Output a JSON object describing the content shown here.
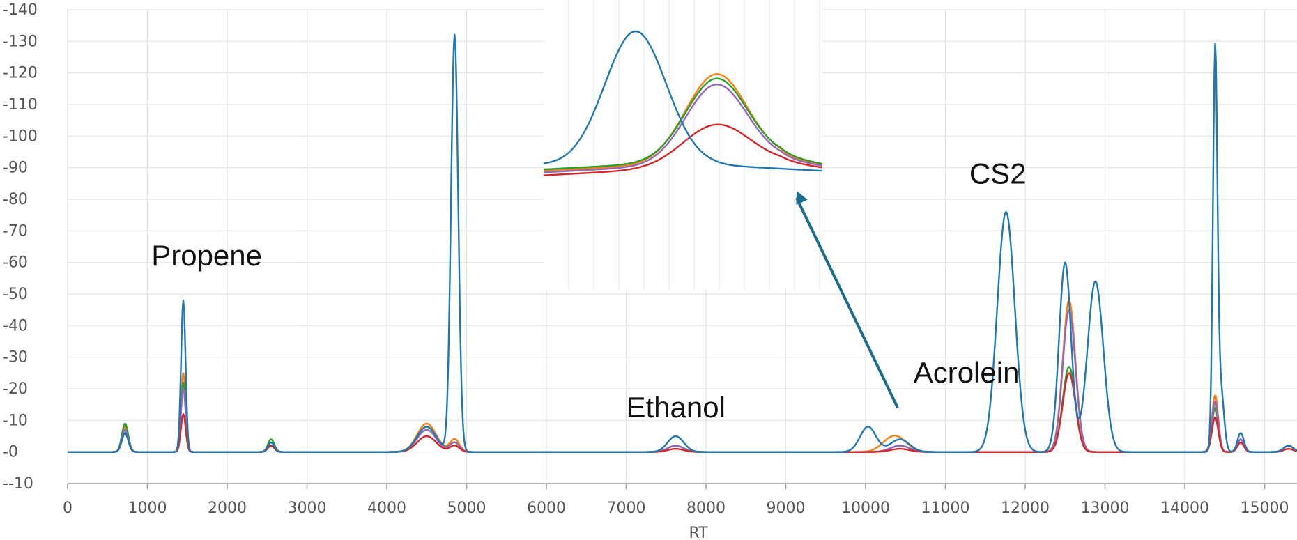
{
  "chart_data": {
    "type": "line",
    "title": "",
    "xlabel": "RT",
    "ylabel": "",
    "xlim": [
      0,
      15500
    ],
    "ylim": [
      -10,
      140
    ],
    "grid": true,
    "legend": "none",
    "x_ticks": [
      0,
      1000,
      2000,
      3000,
      4000,
      5000,
      6000,
      7000,
      8000,
      9000,
      10000,
      11000,
      12000,
      13000,
      14000,
      15000
    ],
    "y_ticks": [
      -10,
      0,
      10,
      20,
      30,
      40,
      50,
      60,
      70,
      80,
      90,
      100,
      110,
      120,
      130,
      140
    ],
    "annotations": [
      {
        "text": "Propene",
        "x": 1050,
        "y": 59
      },
      {
        "text": "Ethanol",
        "x": 7000,
        "y": 11
      },
      {
        "text": "Acrolein",
        "x": 10600,
        "y": 22
      },
      {
        "text": "CS2",
        "x": 11300,
        "y": 85
      }
    ],
    "arrow": {
      "from": [
        10000,
        14
      ],
      "to": [
        9100,
        82
      ]
    },
    "series": [
      {
        "color": "#1f77b4",
        "peaks": [
          [
            720,
            6,
            40
          ],
          [
            1450,
            48,
            28
          ],
          [
            2550,
            3,
            40
          ],
          [
            4500,
            8,
            120
          ],
          [
            4850,
            132,
            45
          ],
          [
            7620,
            5,
            100
          ],
          [
            10030,
            8,
            100
          ],
          [
            10430,
            4,
            120
          ],
          [
            11760,
            76,
            110
          ],
          [
            12500,
            60,
            75
          ],
          [
            12880,
            54,
            100
          ],
          [
            14380,
            125,
            28
          ],
          [
            14450,
            20,
            40
          ],
          [
            14700,
            6,
            40
          ],
          [
            15300,
            2,
            60
          ]
        ]
      },
      {
        "color": "#ff7f0e",
        "peaks": [
          [
            720,
            8,
            40
          ],
          [
            1450,
            25,
            30
          ],
          [
            2550,
            4,
            40
          ],
          [
            4500,
            9,
            120
          ],
          [
            4850,
            4,
            60
          ],
          [
            7620,
            2,
            100
          ],
          [
            10300,
            3,
            120
          ],
          [
            10430,
            3,
            120
          ],
          [
            12550,
            48,
            80
          ],
          [
            14380,
            18,
            40
          ],
          [
            14700,
            4,
            40
          ],
          [
            15300,
            2,
            60
          ]
        ]
      },
      {
        "color": "#2ca02c",
        "peaks": [
          [
            720,
            9,
            40
          ],
          [
            1450,
            22,
            30
          ],
          [
            2550,
            4,
            40
          ],
          [
            4500,
            8,
            120
          ],
          [
            4850,
            3,
            60
          ],
          [
            7620,
            2,
            100
          ],
          [
            10430,
            2,
            120
          ],
          [
            12550,
            27,
            80
          ],
          [
            14380,
            14,
            40
          ],
          [
            14700,
            4,
            40
          ],
          [
            15300,
            2,
            60
          ]
        ]
      },
      {
        "color": "#9467bd",
        "peaks": [
          [
            720,
            7,
            40
          ],
          [
            1450,
            20,
            30
          ],
          [
            2550,
            3,
            40
          ],
          [
            4500,
            7,
            120
          ],
          [
            4850,
            3,
            60
          ],
          [
            7620,
            2,
            100
          ],
          [
            10430,
            2,
            120
          ],
          [
            12550,
            45,
            80
          ],
          [
            14380,
            16,
            40
          ],
          [
            14700,
            4,
            40
          ],
          [
            15300,
            2,
            60
          ]
        ]
      },
      {
        "color": "#d62728",
        "peaks": [
          [
            720,
            6,
            40
          ],
          [
            1450,
            12,
            30
          ],
          [
            2550,
            2,
            40
          ],
          [
            4500,
            5,
            120
          ],
          [
            4850,
            2,
            60
          ],
          [
            7620,
            1,
            100
          ],
          [
            10430,
            1,
            120
          ],
          [
            12550,
            25,
            80
          ],
          [
            14380,
            11,
            40
          ],
          [
            14700,
            3,
            40
          ],
          [
            15300,
            1,
            60
          ]
        ]
      }
    ],
    "inset": {
      "series": [
        {
          "color": "#1f77b4",
          "baseline": 0.1,
          "peak": 1.0,
          "center": 0.33,
          "width": 0.11
        },
        {
          "color": "#ff7f0e",
          "baseline": 0.06,
          "peak": 0.71,
          "center": 0.62,
          "width": 0.11
        },
        {
          "color": "#2ca02c",
          "baseline": 0.07,
          "peak": 0.68,
          "center": 0.62,
          "width": 0.11
        },
        {
          "color": "#9467bd",
          "baseline": 0.05,
          "peak": 0.64,
          "center": 0.62,
          "width": 0.11
        },
        {
          "color": "#d62728",
          "baseline": 0.03,
          "peak": 0.37,
          "center": 0.62,
          "width": 0.12
        }
      ]
    }
  }
}
